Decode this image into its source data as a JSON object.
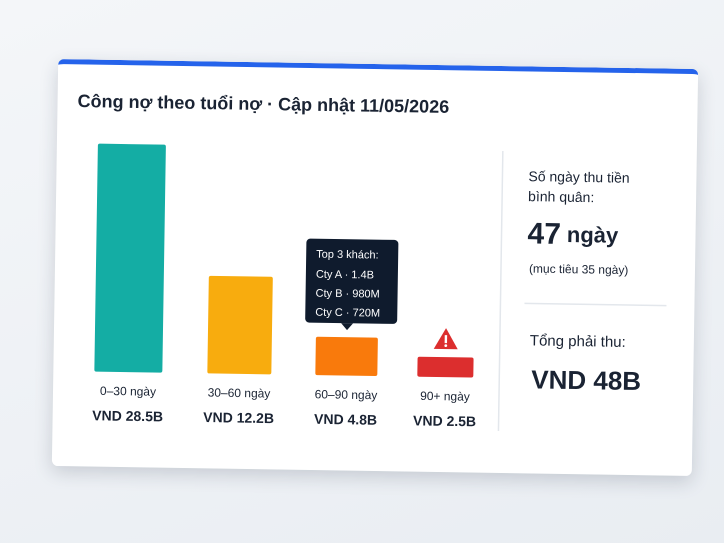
{
  "chart_data": {
    "type": "bar",
    "title": "Công nợ theo tuổi nợ · Cập nhật 11/05/2026",
    "categories": [
      "0–30 ngày",
      "30–60 ngày",
      "60–90 ngày",
      "90+ ngày"
    ],
    "values": [
      28.5,
      12.2,
      4.8,
      2.5
    ],
    "value_labels": [
      "VND 28.5B",
      "VND 12.2B",
      "VND 4.8B",
      "VND 2.5B"
    ],
    "colors": [
      "#14ada4",
      "#f8ac0e",
      "#f97a0c",
      "#dc2e2e"
    ],
    "tooltip": {
      "title": "Top 3 khách:",
      "items": [
        "Cty A · 1.4B",
        "Cty B · 980M",
        "Cty C · 720M"
      ]
    },
    "dso": {
      "label": [
        "Số ngày thu tiền",
        "bình quân:"
      ],
      "value": 47,
      "unit": "ngày",
      "note": "(mục tiêu 35 ngày)"
    },
    "total": {
      "label": "Tổng phải thu:",
      "value": "VND 48B"
    }
  }
}
